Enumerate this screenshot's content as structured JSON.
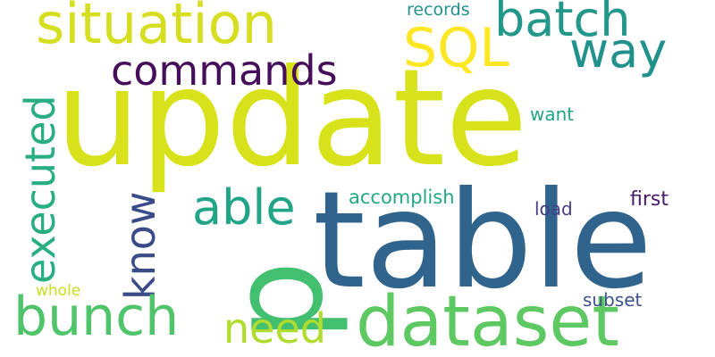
{
  "words": {
    "update": {
      "text": "update",
      "color": "#d8e21b"
    },
    "table": {
      "text": "table",
      "color": "#30648c"
    },
    "dataset": {
      "text": "dataset",
      "color": "#5ec863"
    },
    "p": {
      "text": "p",
      "color": "#43bf70"
    },
    "situation": {
      "text": "situation",
      "color": "#d6de22"
    },
    "batch": {
      "text": "batch",
      "color": "#23978a"
    },
    "sql": {
      "text": "SQL",
      "color": "#fde624"
    },
    "way": {
      "text": "way",
      "color": "#21918c"
    },
    "commands": {
      "text": "commands",
      "color": "#450d5a"
    },
    "executed": {
      "text": "executed",
      "color": "#29af7f"
    },
    "know": {
      "text": "know",
      "color": "#3a4b8a"
    },
    "able": {
      "text": "able",
      "color": "#22a486"
    },
    "bunch": {
      "text": "bunch",
      "color": "#50c46a"
    },
    "need": {
      "text": "need",
      "color": "#afdc2e"
    },
    "records": {
      "text": "records",
      "color": "#21918c"
    },
    "want": {
      "text": "want",
      "color": "#21a585"
    },
    "accomplish": {
      "text": "accomplish",
      "color": "#22a884"
    },
    "first": {
      "text": "first",
      "color": "#48196b"
    },
    "load": {
      "text": "load",
      "color": "#433e85"
    },
    "whole": {
      "text": "whole",
      "color": "#c7e020"
    },
    "subset": {
      "text": "subset",
      "color": "#3b528b"
    }
  }
}
